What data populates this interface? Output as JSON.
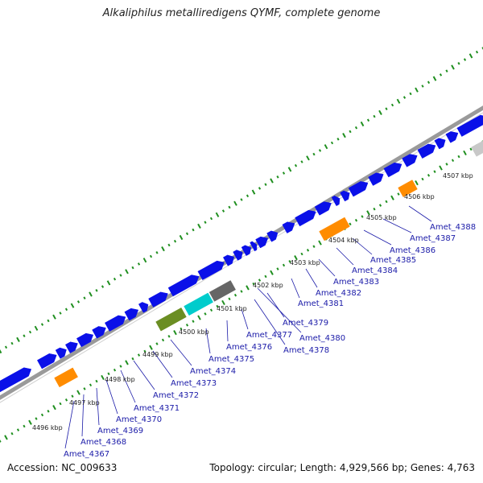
{
  "title": "Alkaliphilus metalliredigens QYMF, complete genome",
  "footer": {
    "accession": "Accession: NC_009633",
    "stats": "Topology: circular; Length: 4,929,566 bp; Genes: 4,763"
  },
  "colors": {
    "backbone": "#9a9a9a",
    "cds": "#0a10e8",
    "rna_orange": "#ff8c00",
    "olive": "#6b8e23",
    "cyan": "#00cccc",
    "gray_feature": "#666666",
    "light_gray_feature": "#c8c8c8",
    "gc_skew_ticks": "#1f8f1f",
    "label_text": "#1a1aa8",
    "leader_line": "#1a1aa8"
  },
  "kbp_ticks": [
    "4496 kbp",
    "4497 kbp",
    "4498 kbp",
    "4499 kbp",
    "4500 kbp",
    "4501 kbp",
    "4502 kbp",
    "4503 kbp",
    "4504 kbp",
    "4505 kbp",
    "4506 kbp",
    "4507 kbp"
  ],
  "gene_labels": [
    "Amet_4367",
    "Amet_4368",
    "Amet_4369",
    "Amet_4370",
    "Amet_4371",
    "Amet_4372",
    "Amet_4373",
    "Amet_4374",
    "Amet_4375",
    "Amet_4376",
    "Amet_4377",
    "Amet_4378",
    "Amet_4379",
    "Amet_4380",
    "Amet_4381",
    "Amet_4382",
    "Amet_4383",
    "Amet_4384",
    "Amet_4385",
    "Amet_4386",
    "Amet_4387",
    "Amet_4388"
  ]
}
